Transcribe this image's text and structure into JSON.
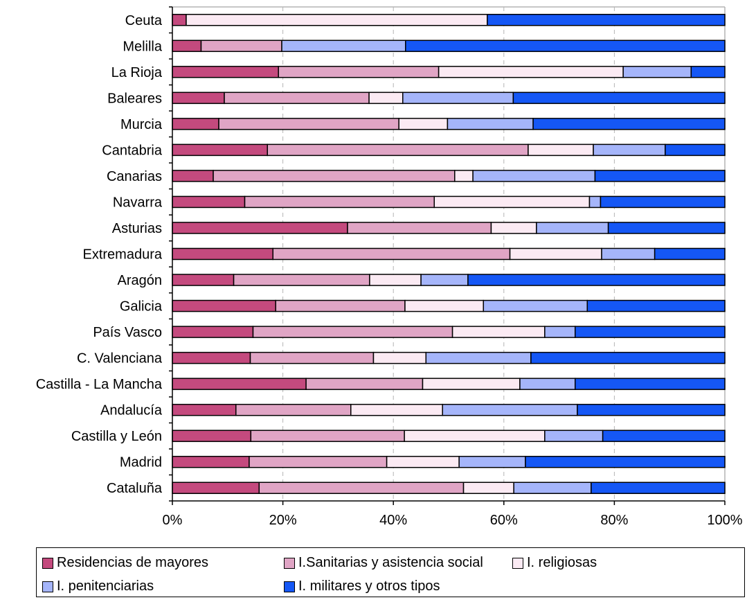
{
  "chart_data": {
    "type": "bar",
    "orientation": "horizontal",
    "stacked": "percent",
    "title": "",
    "xlabel": "",
    "ylabel": "",
    "xlim": [
      0,
      100
    ],
    "x_ticks": [
      "0%",
      "20%",
      "40%",
      "60%",
      "80%",
      "100%"
    ],
    "grid": "vertical dashed",
    "legend_position": "bottom",
    "categories": [
      "Ceuta",
      "Melilla",
      "La Rioja",
      "Baleares",
      "Murcia",
      "Cantabria",
      "Canarias",
      "Navarra",
      "Asturias",
      "Extremadura",
      "Aragón",
      "Galicia",
      "País Vasco",
      "C. Valenciana",
      "Castilla - La Mancha",
      "Andalucía",
      "Castilla y León",
      "Madrid",
      "Cataluña"
    ],
    "series": [
      {
        "name": "Residencias de mayores",
        "color": "#c44a7e",
        "values": [
          2.5,
          5.2,
          19.2,
          9.4,
          8.4,
          17.2,
          7.4,
          13.1,
          31.7,
          18.2,
          11.1,
          18.7,
          14.6,
          14.1,
          24.2,
          11.5,
          14.2,
          13.9,
          15.7
        ]
      },
      {
        "name": "I.Sanitarias y asistencia social",
        "color": "#e0a5c5",
        "values": [
          0,
          14.6,
          29.0,
          26.2,
          32.6,
          47.2,
          43.7,
          34.3,
          26.0,
          42.9,
          24.6,
          23.4,
          36.1,
          22.3,
          21.1,
          20.8,
          27.8,
          24.9,
          37.0
        ]
      },
      {
        "name": "I. religiosas",
        "color": "#fbeaf3",
        "values": [
          54.5,
          0,
          33.4,
          6.1,
          8.8,
          11.8,
          3.3,
          28.1,
          8.2,
          16.6,
          9.3,
          14.2,
          16.7,
          9.5,
          17.6,
          16.6,
          25.4,
          13.1,
          9.1
        ]
      },
      {
        "name": "I. penitenciarias",
        "color": "#a5b5fa",
        "values": [
          0,
          22.4,
          12.3,
          20.0,
          15.5,
          13.0,
          22.1,
          2.0,
          13.0,
          9.6,
          8.5,
          18.8,
          5.5,
          19.0,
          10.0,
          24.4,
          10.5,
          12.0,
          14.0
        ]
      },
      {
        "name": "I. militares y otros tipos",
        "color": "#1557f5",
        "values": [
          43.0,
          57.8,
          6.1,
          38.3,
          34.7,
          10.8,
          23.5,
          22.5,
          21.1,
          12.7,
          46.5,
          24.9,
          27.1,
          35.1,
          27.1,
          26.7,
          22.1,
          36.1,
          24.2
        ]
      }
    ]
  }
}
